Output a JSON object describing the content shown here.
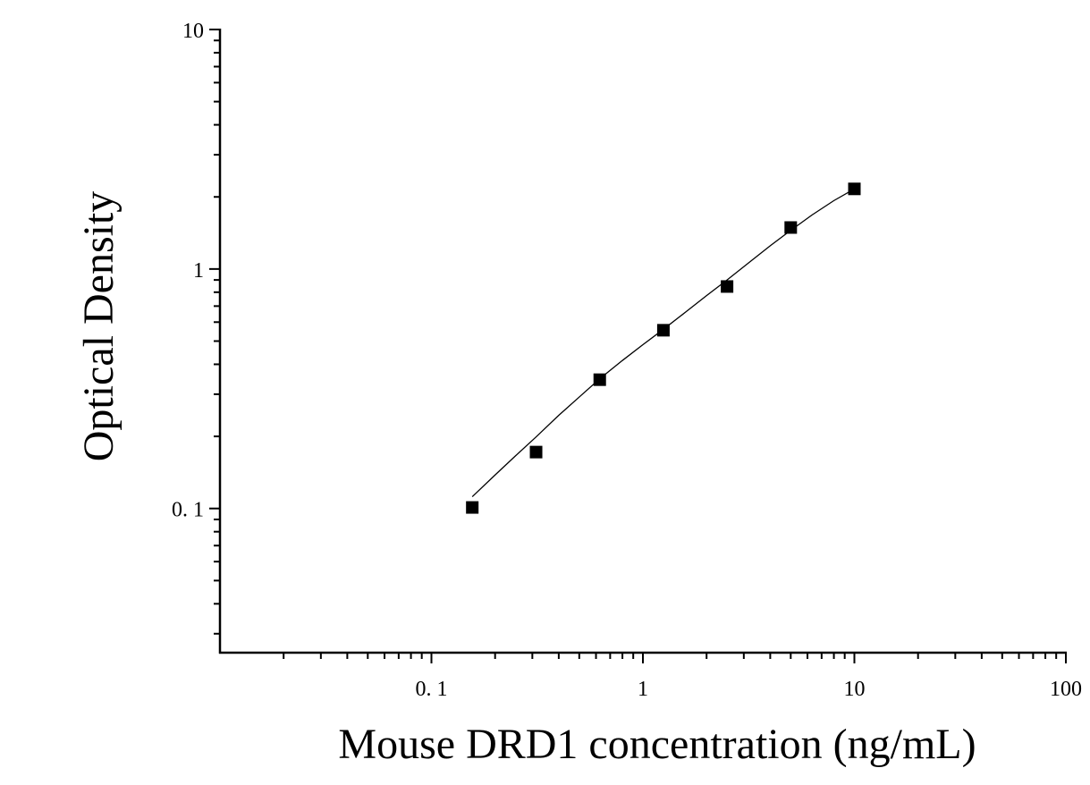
{
  "chart_data": {
    "type": "scatter",
    "title": "",
    "xlabel": "Mouse DRD1 concentration (ng/mL)",
    "ylabel": "Optical Density",
    "x_scale": "log",
    "y_scale": "log",
    "xlim": [
      0.01,
      100
    ],
    "ylim": [
      0.025,
      10
    ],
    "x_ticks": [
      {
        "value": 0.1,
        "label": "0. 1"
      },
      {
        "value": 1,
        "label": "1"
      },
      {
        "value": 10,
        "label": "10"
      },
      {
        "value": 100,
        "label": "100"
      }
    ],
    "y_ticks": [
      {
        "value": 0.1,
        "label": "0. 1"
      },
      {
        "value": 1,
        "label": "1"
      },
      {
        "value": 10,
        "label": "10"
      }
    ],
    "grid": false,
    "legend": "none",
    "marker": "square",
    "marker_color": "#000000",
    "line_color": "#000000",
    "series": [
      {
        "x": [
          0.156,
          0.3125,
          0.625,
          1.25,
          2.5,
          5,
          10
        ],
        "y": [
          0.101,
          0.172,
          0.345,
          0.555,
          0.845,
          1.49,
          2.16
        ]
      }
    ],
    "fit_curve": {
      "x": [
        0.156,
        0.2,
        0.25,
        0.3125,
        0.4,
        0.5,
        0.625,
        0.8,
        1,
        1.25,
        1.6,
        2,
        2.5,
        3.2,
        4,
        5,
        6.3,
        8,
        10
      ],
      "y": [
        0.112,
        0.138,
        0.166,
        0.199,
        0.245,
        0.292,
        0.348,
        0.415,
        0.483,
        0.56,
        0.663,
        0.774,
        0.9,
        1.07,
        1.25,
        1.45,
        1.68,
        1.93,
        2.16
      ]
    }
  }
}
